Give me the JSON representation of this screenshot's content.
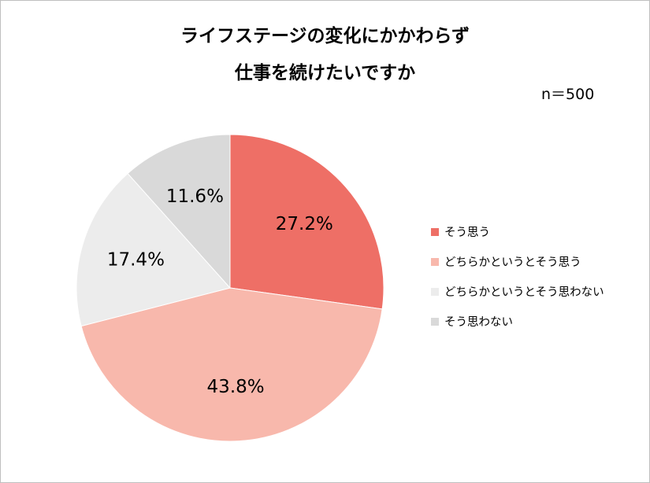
{
  "title": {
    "line1": "ライフステージの変化にかかわらず",
    "line2": "仕事を続けたいですか"
  },
  "sample_note": "n＝500",
  "chart_data": {
    "type": "pie",
    "title": "ライフステージの変化にかかわらず仕事を続けたいですか",
    "note": "n＝500",
    "categories": [
      "そう思う",
      "どちらかというとそう思う",
      "どちらかというとそう思わない",
      "そう思わない"
    ],
    "values": [
      27.2,
      43.8,
      17.4,
      11.6
    ],
    "value_labels": [
      "27.2%",
      "43.8%",
      "17.4%",
      "11.6%"
    ],
    "unit": "%",
    "colors": [
      "#ee6f66",
      "#f8b8ac",
      "#ececec",
      "#d9d9d9"
    ],
    "start_angle": "12 o'clock",
    "direction": "clockwise",
    "legend_position": "right"
  }
}
